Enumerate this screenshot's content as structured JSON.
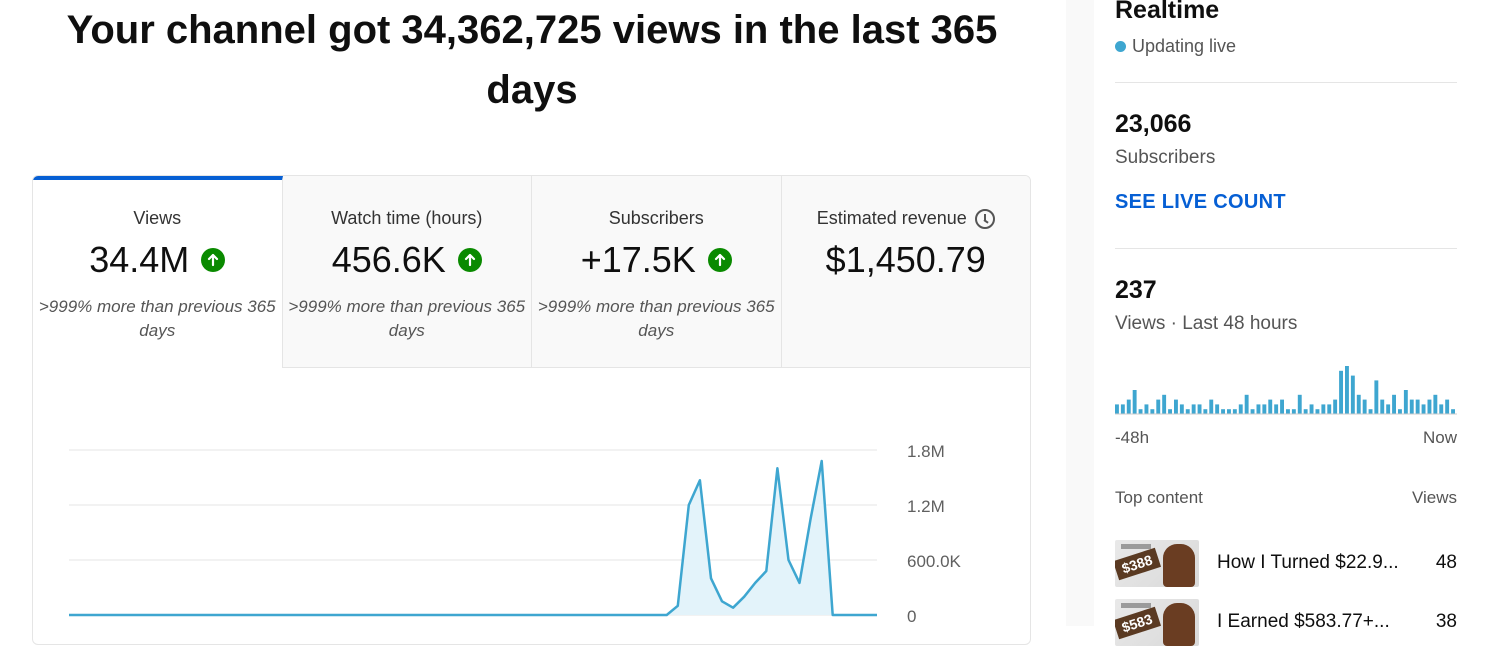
{
  "headline": "Your channel got 34,362,725 views in the last 365 days",
  "tabs": [
    {
      "title": "Views",
      "value": "34.4M",
      "trend": "up",
      "compare": ">999% more than previous 365 days"
    },
    {
      "title": "Watch time (hours)",
      "value": "456.6K",
      "trend": "up",
      "compare": ">999% more than previous 365 days"
    },
    {
      "title": "Subscribers",
      "value": "+17.5K",
      "trend": "up",
      "compare": ">999% more than previous 365 days"
    },
    {
      "title": "Estimated revenue",
      "value": "$1,450.79",
      "trend": "none",
      "compare": "",
      "icon": "clock-icon"
    }
  ],
  "colors": {
    "accent": "#065fd4",
    "up": "#0a8a00",
    "line": "#3ea6d0",
    "fill": "#e3f3fa"
  },
  "chart_data": {
    "type": "area",
    "ylim": [
      0,
      1800000
    ],
    "ytick_labels": [
      "1.8M",
      "1.2M",
      "600.0K",
      "0"
    ],
    "yticks": [
      1800000,
      1200000,
      600000,
      0
    ],
    "x": [
      0,
      10,
      20,
      30,
      40,
      50,
      60,
      70,
      80,
      90,
      100,
      110,
      120,
      130,
      140,
      150,
      160,
      170,
      180,
      190,
      200,
      210,
      220,
      230,
      240,
      250,
      260,
      270,
      275,
      280,
      285,
      290,
      295,
      300,
      305,
      310,
      315,
      320,
      325,
      330,
      335,
      340,
      345,
      350,
      355,
      360,
      365
    ],
    "values": [
      0,
      0,
      0,
      0,
      0,
      0,
      0,
      0,
      0,
      0,
      0,
      0,
      0,
      0,
      0,
      0,
      0,
      0,
      0,
      0,
      0,
      0,
      0,
      0,
      0,
      0,
      0,
      0,
      100000,
      1200000,
      1470000,
      400000,
      150000,
      80000,
      200000,
      350000,
      480000,
      1600000,
      600000,
      350000,
      1050000,
      1680000,
      0,
      0,
      0,
      0,
      0
    ]
  },
  "realtime": {
    "title": "Realtime",
    "status": "Updating live",
    "subscribers_value": "23,066",
    "subscribers_label": "Subscribers",
    "live_count_link": "SEE LIVE COUNT",
    "views_value": "237",
    "views_label": "Views · Last 48 hours",
    "axis_start": "-48h",
    "axis_end": "Now",
    "hourly_views": [
      2,
      2,
      3,
      5,
      1,
      2,
      1,
      3,
      4,
      1,
      3,
      2,
      1,
      2,
      2,
      1,
      3,
      2,
      1,
      1,
      1,
      2,
      4,
      1,
      2,
      2,
      3,
      2,
      3,
      1,
      1,
      4,
      1,
      2,
      1,
      2,
      2,
      3,
      9,
      10,
      8,
      4,
      3,
      1,
      7,
      3,
      2,
      4,
      1,
      5,
      3,
      3,
      2,
      3,
      4,
      2,
      3,
      1
    ]
  },
  "top_content": {
    "header_left": "Top content",
    "header_right": "Views",
    "items": [
      {
        "title": "How I Turned $22.9...",
        "views": "48",
        "thumb_badge": "$388"
      },
      {
        "title": "I Earned $583.77+...",
        "views": "38",
        "thumb_badge": "$583"
      }
    ]
  }
}
